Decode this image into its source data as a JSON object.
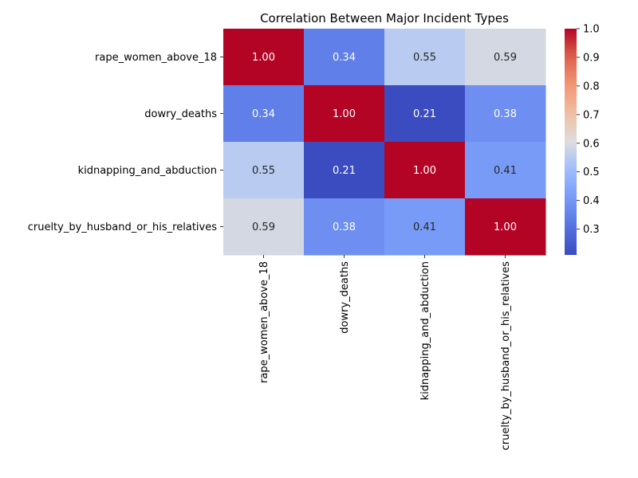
{
  "chart_data": {
    "type": "heatmap",
    "title": "Correlation Between Major Incident Types",
    "rows": [
      "rape_women_above_18",
      "dowry_deaths",
      "kidnapping_and_abduction",
      "cruelty_by_husband_or_his_relatives"
    ],
    "columns": [
      "rape_women_above_18",
      "dowry_deaths",
      "kidnapping_and_abduction",
      "cruelty_by_husband_or_his_relatives"
    ],
    "values": [
      [
        1.0,
        0.34,
        0.55,
        0.59
      ],
      [
        0.34,
        1.0,
        0.21,
        0.38
      ],
      [
        0.55,
        0.21,
        1.0,
        0.41
      ],
      [
        0.59,
        0.38,
        0.41,
        1.0
      ]
    ],
    "value_format": "0.00",
    "colormap": "coolwarm",
    "colorbar": {
      "vmin": 0.21,
      "vmax": 1.0,
      "ticks": [
        0.3,
        0.4,
        0.5,
        0.6,
        0.7,
        0.8,
        0.9,
        1.0
      ],
      "tick_labels": [
        "0.3",
        "0.4",
        "0.5",
        "0.6",
        "0.7",
        "0.8",
        "0.9",
        "1.0"
      ]
    },
    "xlabel": "",
    "ylabel": ""
  }
}
